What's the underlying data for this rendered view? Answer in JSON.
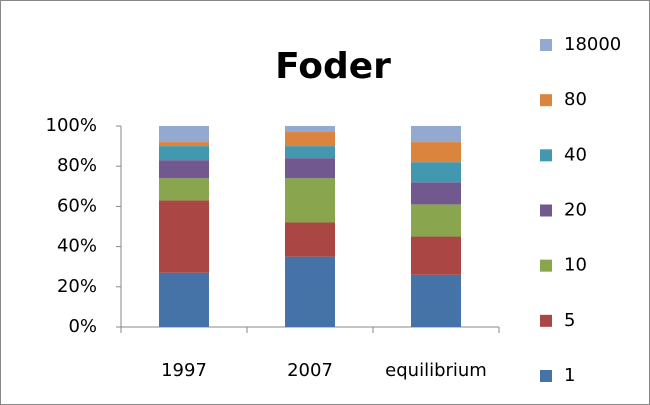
{
  "chart_data": {
    "type": "stacked_bar",
    "title": "Foder",
    "categories": [
      "1997",
      "2007",
      "equilibrium"
    ],
    "series": [
      {
        "name": "1",
        "color": "#4572a7",
        "values": [
          27,
          35,
          26
        ]
      },
      {
        "name": "5",
        "color": "#aa4643",
        "values": [
          36,
          17,
          19
        ]
      },
      {
        "name": "10",
        "color": "#89a54e",
        "values": [
          11,
          22,
          16
        ]
      },
      {
        "name": "20",
        "color": "#71588f",
        "values": [
          9,
          10,
          11
        ]
      },
      {
        "name": "40",
        "color": "#4198af",
        "values": [
          7,
          6,
          10
        ]
      },
      {
        "name": "80",
        "color": "#db843d",
        "values": [
          2,
          7,
          10
        ]
      },
      {
        "name": "18000",
        "color": "#93a9cf",
        "values": [
          8,
          3,
          8
        ]
      }
    ],
    "ylim": [
      0,
      100
    ],
    "yticks": [
      {
        "value": 0,
        "label": "0%"
      },
      {
        "value": 20,
        "label": "20%"
      },
      {
        "value": 40,
        "label": "40%"
      },
      {
        "value": 60,
        "label": "60%"
      },
      {
        "value": 80,
        "label": "80%"
      },
      {
        "value": 100,
        "label": "100%"
      }
    ],
    "grid": false,
    "legend": "right"
  }
}
